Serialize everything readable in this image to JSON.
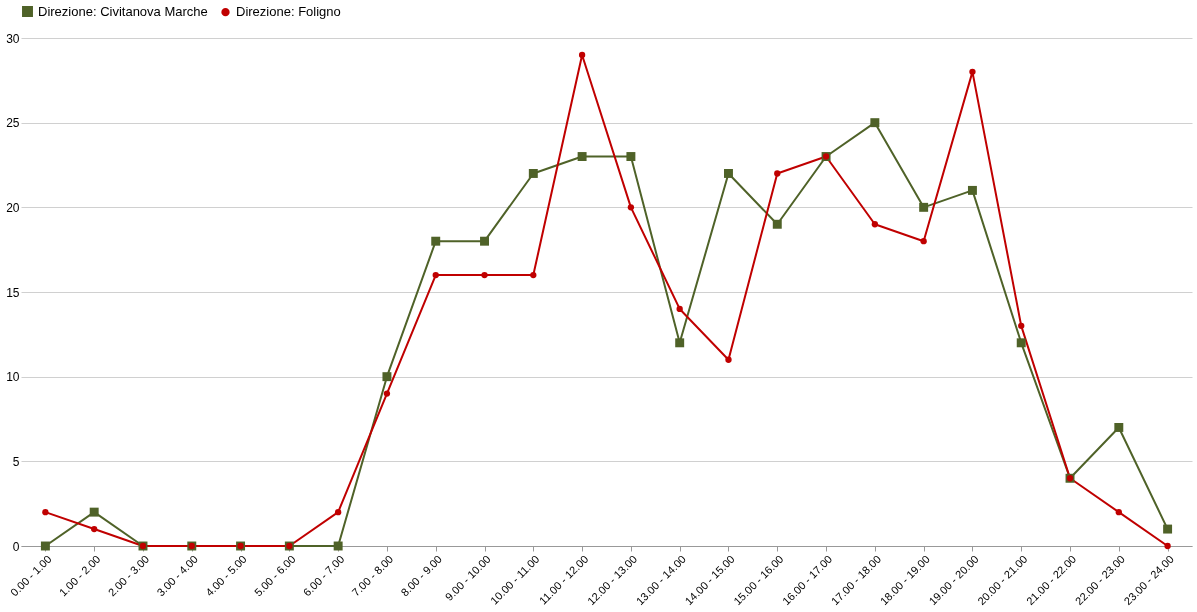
{
  "chart_data": {
    "type": "line",
    "categories": [
      "0.00 - 1.00",
      "1.00 - 2.00",
      "2.00 - 3.00",
      "3.00 - 4.00",
      "4.00 - 5.00",
      "5.00 - 6.00",
      "6.00 - 7.00",
      "7.00 - 8.00",
      "8.00 - 9.00",
      "9.00 - 10.00",
      "10.00 - 11.00",
      "11.00 - 12.00",
      "12.00 - 13.00",
      "13.00 - 14.00",
      "14.00 - 15.00",
      "15.00 - 16.00",
      "16.00 - 17.00",
      "17.00 - 18.00",
      "18.00 - 19.00",
      "19.00 - 20.00",
      "20.00 - 21.00",
      "21.00 - 22.00",
      "22.00 - 23.00",
      "23.00 - 24.00"
    ],
    "series": [
      {
        "name": "Direzione: Civitanova Marche",
        "color": "#4f6228",
        "marker": "square",
        "values": [
          0,
          2,
          0,
          0,
          0,
          0,
          0,
          10,
          18,
          18,
          22,
          23,
          23,
          12,
          22,
          19,
          23,
          25,
          20,
          21,
          12,
          4,
          7,
          1
        ]
      },
      {
        "name": "Direzione: Foligno",
        "color": "#c00000",
        "marker": "circle",
        "values": [
          2,
          1,
          0,
          0,
          0,
          0,
          2,
          9,
          16,
          16,
          16,
          29,
          20,
          14,
          11,
          22,
          23,
          19,
          18,
          28,
          13,
          4,
          2,
          0
        ]
      }
    ],
    "ylim": [
      0,
      30
    ],
    "yticks": [
      0,
      5,
      10,
      15,
      20,
      25,
      30
    ],
    "grid": "y",
    "legend": "top",
    "line_style": "solid"
  }
}
